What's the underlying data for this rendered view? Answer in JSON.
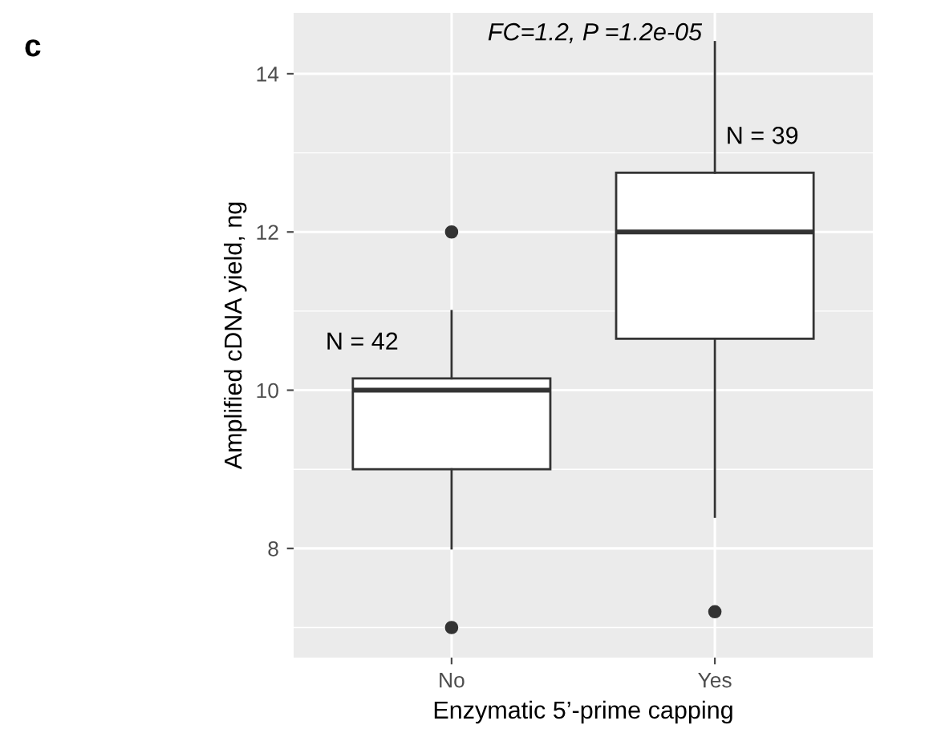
{
  "chart_data": {
    "type": "box",
    "xlabel": "Enzymatic 5’-prime capping",
    "ylabel": "Amplified cDNA yield, ng",
    "categories": [
      "No",
      "Yes"
    ],
    "boxes": [
      {
        "low": 8.0,
        "q1": 9.0,
        "median": 10.0,
        "q3": 10.15,
        "high": 11.0,
        "outliers": [
          12.0,
          7.0
        ]
      },
      {
        "low": 8.4,
        "q1": 10.65,
        "median": 12.0,
        "q3": 12.75,
        "high": 14.4,
        "outliers": [
          7.2
        ]
      }
    ],
    "ylim": [
      6.62,
      14.77
    ],
    "yticks": [
      8,
      10,
      12,
      14
    ],
    "grid": true,
    "annotations": [
      "c",
      "FC=1.2, P =1.2e-05",
      "N = 42",
      "N = 39"
    ]
  }
}
